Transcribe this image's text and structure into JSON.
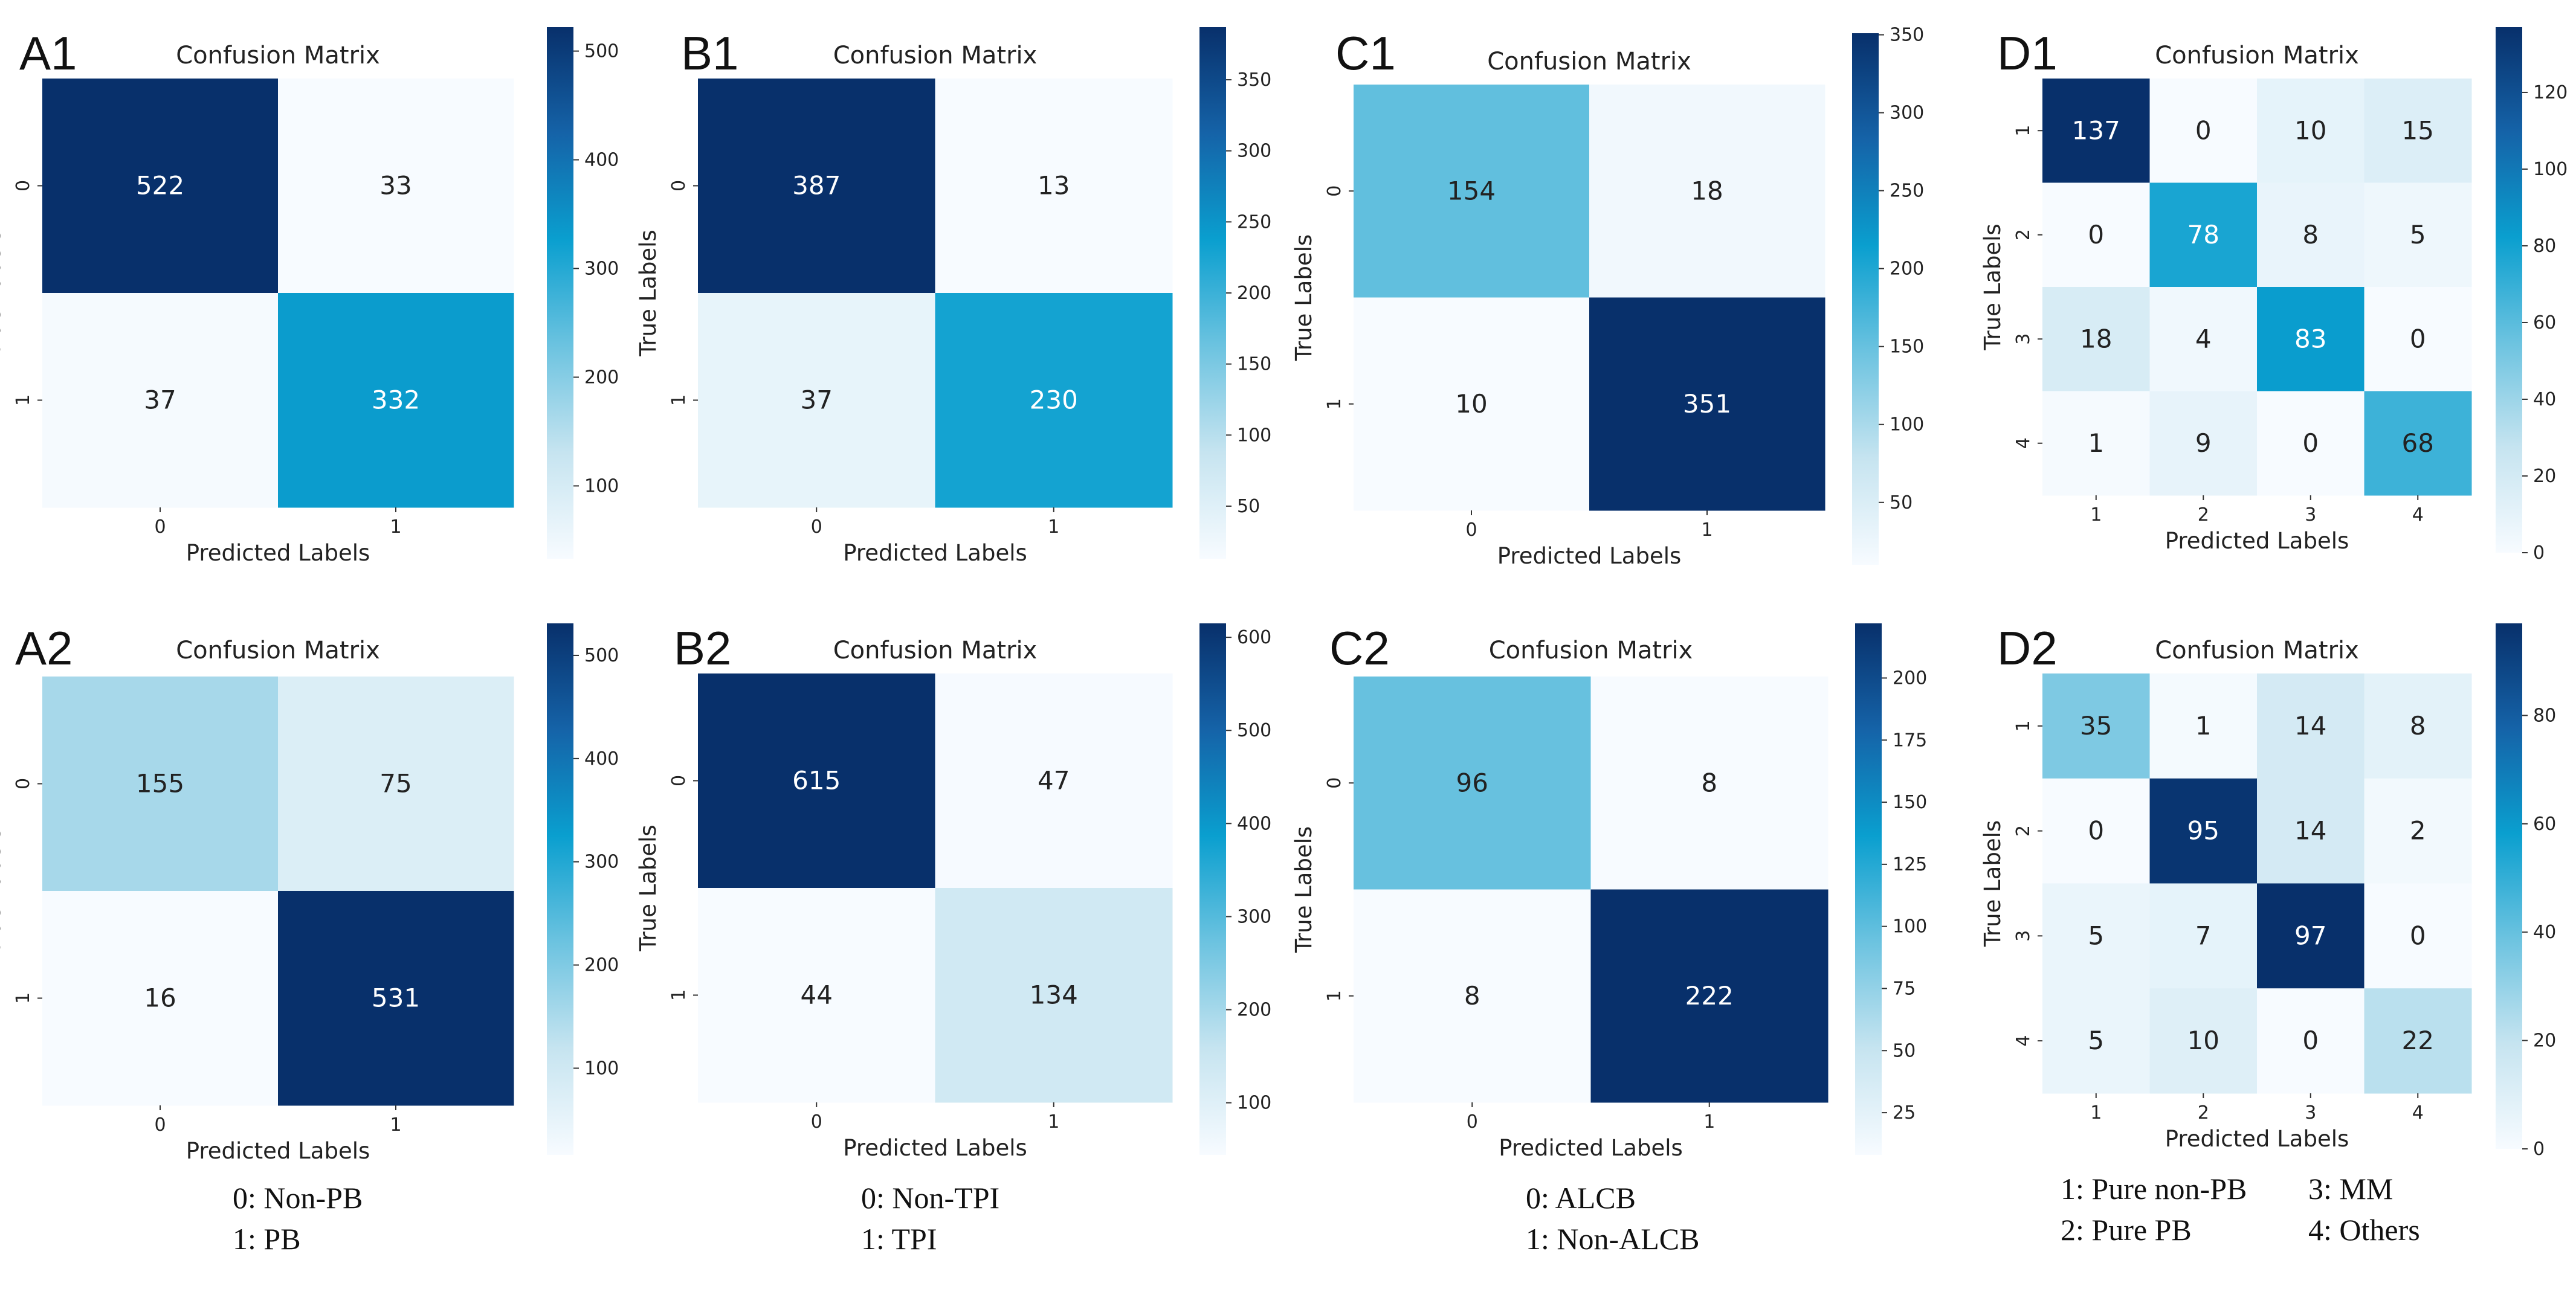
{
  "colormap": {
    "name": "Blues-to-teal",
    "stops": [
      "#f7fbff",
      "#c6e4f0",
      "#6cc3e0",
      "#0a9fcf",
      "#1563a8",
      "#08306b"
    ]
  },
  "chart_data": [
    {
      "panel": "A1",
      "type": "heatmap",
      "title": "Confusion Matrix",
      "xlabel": "Predicted Labels",
      "ylabel": "True Labels",
      "x_ticks": [
        "0",
        "1"
      ],
      "y_ticks": [
        "0",
        "1"
      ],
      "matrix": [
        [
          522,
          33
        ],
        [
          37,
          332
        ]
      ],
      "colorbar": {
        "range": [
          33,
          522
        ],
        "ticks": [
          100,
          200,
          300,
          400,
          500
        ]
      }
    },
    {
      "panel": "B1",
      "type": "heatmap",
      "title": "Confusion Matrix",
      "xlabel": "Predicted Labels",
      "ylabel": "True Labels",
      "x_ticks": [
        "0",
        "1"
      ],
      "y_ticks": [
        "0",
        "1"
      ],
      "matrix": [
        [
          387,
          13
        ],
        [
          37,
          230
        ]
      ],
      "colorbar": {
        "range": [
          13,
          387
        ],
        "ticks": [
          50,
          100,
          150,
          200,
          250,
          300,
          350
        ]
      }
    },
    {
      "panel": "C1",
      "type": "heatmap",
      "title": "Confusion Matrix",
      "xlabel": "Predicted Labels",
      "ylabel": "True Labels",
      "x_ticks": [
        "0",
        "1"
      ],
      "y_ticks": [
        "0",
        "1"
      ],
      "matrix": [
        [
          154,
          18
        ],
        [
          10,
          351
        ]
      ],
      "colorbar": {
        "range": [
          10,
          351
        ],
        "ticks": [
          50,
          100,
          150,
          200,
          250,
          300,
          350
        ]
      }
    },
    {
      "panel": "D1",
      "type": "heatmap",
      "title": "Confusion Matrix",
      "xlabel": "Predicted Labels",
      "ylabel": "True Labels",
      "x_ticks": [
        "1",
        "2",
        "3",
        "4"
      ],
      "y_ticks": [
        "1",
        "2",
        "3",
        "4"
      ],
      "matrix": [
        [
          137,
          0,
          10,
          15
        ],
        [
          0,
          78,
          8,
          5
        ],
        [
          18,
          4,
          83,
          0
        ],
        [
          1,
          9,
          0,
          68
        ]
      ],
      "colorbar": {
        "range": [
          0,
          137
        ],
        "ticks": [
          0,
          20,
          40,
          60,
          80,
          100,
          120
        ]
      }
    },
    {
      "panel": "A2",
      "type": "heatmap",
      "title": "Confusion Matrix",
      "xlabel": "Predicted Labels",
      "ylabel": "True Labels",
      "x_ticks": [
        "0",
        "1"
      ],
      "y_ticks": [
        "0",
        "1"
      ],
      "matrix": [
        [
          155,
          75
        ],
        [
          16,
          531
        ]
      ],
      "colorbar": {
        "range": [
          16,
          531
        ],
        "ticks": [
          100,
          200,
          300,
          400,
          500
        ]
      }
    },
    {
      "panel": "B2",
      "type": "heatmap",
      "title": "Confusion Matrix",
      "xlabel": "Predicted Labels",
      "ylabel": "True Labels",
      "x_ticks": [
        "0",
        "1"
      ],
      "y_ticks": [
        "0",
        "1"
      ],
      "matrix": [
        [
          615,
          47
        ],
        [
          44,
          134
        ]
      ],
      "colorbar": {
        "range": [
          44,
          615
        ],
        "ticks": [
          100,
          200,
          300,
          400,
          500,
          600
        ]
      }
    },
    {
      "panel": "C2",
      "type": "heatmap",
      "title": "Confusion Matrix",
      "xlabel": "Predicted Labels",
      "ylabel": "True Labels",
      "x_ticks": [
        "0",
        "1"
      ],
      "y_ticks": [
        "0",
        "1"
      ],
      "matrix": [
        [
          96,
          8
        ],
        [
          8,
          222
        ]
      ],
      "colorbar": {
        "range": [
          8,
          222
        ],
        "ticks": [
          25,
          50,
          75,
          100,
          125,
          150,
          175,
          200
        ]
      }
    },
    {
      "panel": "D2",
      "type": "heatmap",
      "title": "Confusion Matrix",
      "xlabel": "Predicted Labels",
      "ylabel": "True Labels",
      "x_ticks": [
        "1",
        "2",
        "3",
        "4"
      ],
      "y_ticks": [
        "1",
        "2",
        "3",
        "4"
      ],
      "matrix": [
        [
          35,
          1,
          14,
          8
        ],
        [
          0,
          95,
          14,
          2
        ],
        [
          5,
          7,
          97,
          0
        ],
        [
          5,
          10,
          0,
          22
        ]
      ],
      "colorbar": {
        "range": [
          0,
          97
        ],
        "ticks": [
          0,
          20,
          40,
          60,
          80
        ]
      }
    }
  ],
  "legends": [
    {
      "column": "A",
      "lines": [
        "0: Non-PB",
        "1: PB"
      ]
    },
    {
      "column": "B",
      "lines": [
        "0: Non-TPI",
        "1: TPI"
      ]
    },
    {
      "column": "C",
      "lines": [
        "0: ALCB",
        "1: Non-ALCB"
      ]
    },
    {
      "column": "D",
      "lines": [
        "1: Pure non-PB",
        "2: Pure PB",
        "3: MM",
        "4: Others"
      ]
    }
  ]
}
